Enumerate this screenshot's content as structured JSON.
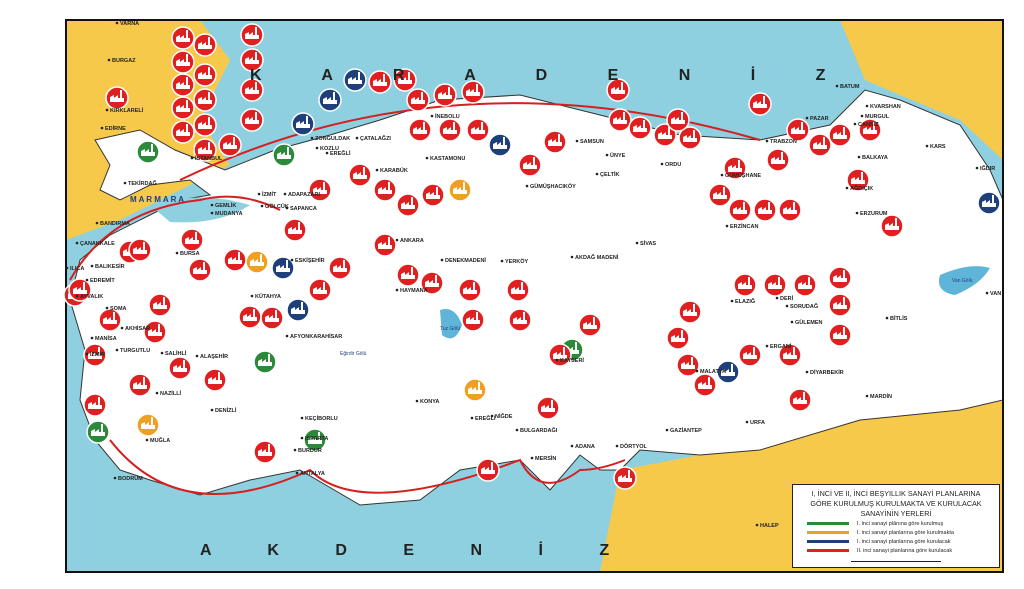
{
  "seas": {
    "black_sea": "K A R A D E N İ Z",
    "mediterranean": "A K D E N İ Z",
    "marmara": "M A R M A R A"
  },
  "lakes": {
    "van": "Van Gölü",
    "tuz": "Tuz Gölü",
    "egirdir": "Eğirdir Gölü"
  },
  "colors": {
    "sea": "#8fd0e0",
    "land": "#ffffff",
    "neighbor": "#f7c94a",
    "frame": "#111111",
    "route": "#d42020",
    "kurulmus": "#2a8a3a",
    "kurulmakta": "#f0a020",
    "kurulacak_1": "#1f3f7a",
    "kurulacak_2": "#e02020"
  },
  "cities": [
    {
      "name": "İSTANBUL"
    },
    {
      "name": "EDİRNE"
    },
    {
      "name": "KIRKLARELİ"
    },
    {
      "name": "TEKİRDAĞ"
    },
    {
      "name": "ÇANAKKALE"
    },
    {
      "name": "BANDIRMA"
    },
    {
      "name": "MUDANYA"
    },
    {
      "name": "GEMLİK"
    },
    {
      "name": "BURSA"
    },
    {
      "name": "İZMİT"
    },
    {
      "name": "ADAPAZARI"
    },
    {
      "name": "GÖLCÜK"
    },
    {
      "name": "SAPANCA"
    },
    {
      "name": "EREĞLİ"
    },
    {
      "name": "ZONGULDAK"
    },
    {
      "name": "ÇATALAĞZI"
    },
    {
      "name": "KOZLU"
    },
    {
      "name": "KARABÜK"
    },
    {
      "name": "KASTAMONU"
    },
    {
      "name": "İNEBOLU"
    },
    {
      "name": "ANKARA"
    },
    {
      "name": "ESKİŞEHİR"
    },
    {
      "name": "KÜTAHYA"
    },
    {
      "name": "BALIKESİR"
    },
    {
      "name": "EDREMİT"
    },
    {
      "name": "AYVALIK"
    },
    {
      "name": "ILICA"
    },
    {
      "name": "SOMA"
    },
    {
      "name": "AKHİSAR"
    },
    {
      "name": "MANİSA"
    },
    {
      "name": "İZMİR"
    },
    {
      "name": "TURGUTLU"
    },
    {
      "name": "SALİHLİ"
    },
    {
      "name": "ALAŞEHİR"
    },
    {
      "name": "NAZİLLİ"
    },
    {
      "name": "DENİZLİ"
    },
    {
      "name": "MUĞLA"
    },
    {
      "name": "BODRUM"
    },
    {
      "name": "AFYONKARAHİSAR"
    },
    {
      "name": "ISPARTA"
    },
    {
      "name": "BURDUR"
    },
    {
      "name": "KEÇİBORLU"
    },
    {
      "name": "ANTALYA"
    },
    {
      "name": "KONYA"
    },
    {
      "name": "EREĞLİ"
    },
    {
      "name": "NİĞDE"
    },
    {
      "name": "KAYSERİ"
    },
    {
      "name": "HAYMANA"
    },
    {
      "name": "DENEKMADENİ"
    },
    {
      "name": "YERKÖY"
    },
    {
      "name": "AKDAĞ MADENİ"
    },
    {
      "name": "SİVAS"
    },
    {
      "name": "BULGARDAĞI"
    },
    {
      "name": "ADANA"
    },
    {
      "name": "MERSİN"
    },
    {
      "name": "DÖRTYOL"
    },
    {
      "name": "GAZİANTEP"
    },
    {
      "name": "URFA"
    },
    {
      "name": "MARDİN"
    },
    {
      "name": "DİYARBEKİR"
    },
    {
      "name": "ERGANİ"
    },
    {
      "name": "MALATYA"
    },
    {
      "name": "ELAZIĞ"
    },
    {
      "name": "DERİ"
    },
    {
      "name": "SORUDAĞ"
    },
    {
      "name": "GÜLEMEN"
    },
    {
      "name": "BİTLİS"
    },
    {
      "name": "VAN"
    },
    {
      "name": "ERZURUM"
    },
    {
      "name": "ERZİNCAN"
    },
    {
      "name": "AĞDIÇIK"
    },
    {
      "name": "KARS"
    },
    {
      "name": "IĞDIR"
    },
    {
      "name": "BATUM"
    },
    {
      "name": "KVARSHAN"
    },
    {
      "name": "MURGUL"
    },
    {
      "name": "CANSIZ"
    },
    {
      "name": "BALKAYA"
    },
    {
      "name": "PAZAR"
    },
    {
      "name": "TRABZON"
    },
    {
      "name": "GÜMÜŞHANE"
    },
    {
      "name": "ORDU"
    },
    {
      "name": "ÜNYE"
    },
    {
      "name": "SAMSUN"
    },
    {
      "name": "ÇELTİK"
    },
    {
      "name": "GÜMÜŞHACIKÖY"
    },
    {
      "name": "BURGAZ"
    },
    {
      "name": "HALEP"
    },
    {
      "name": "VARNA"
    }
  ],
  "legend": {
    "title_1": "I, İNCİ VE II, İNCİ BEŞYILLIK SANAYİ PLANLARINA",
    "title_2": "GÖRE KURULMUŞ KURULMAKTA VE KURULACAK",
    "title_3": "SANAYİNİN YERLERİ",
    "items": [
      {
        "label": "I. inci sanayi plânına göre kurulmuş",
        "color": "#2a8a3a"
      },
      {
        "label": "I. inci sanayi planlarına göre kurulmakta",
        "color": "#f0a020"
      },
      {
        "label": "I. inci sanayi planlarına göre kurulacak",
        "color": "#1f3f7a"
      },
      {
        "label": "II. inci sanayi planlarına göre kurulacak",
        "color": "#e02020"
      }
    ]
  }
}
